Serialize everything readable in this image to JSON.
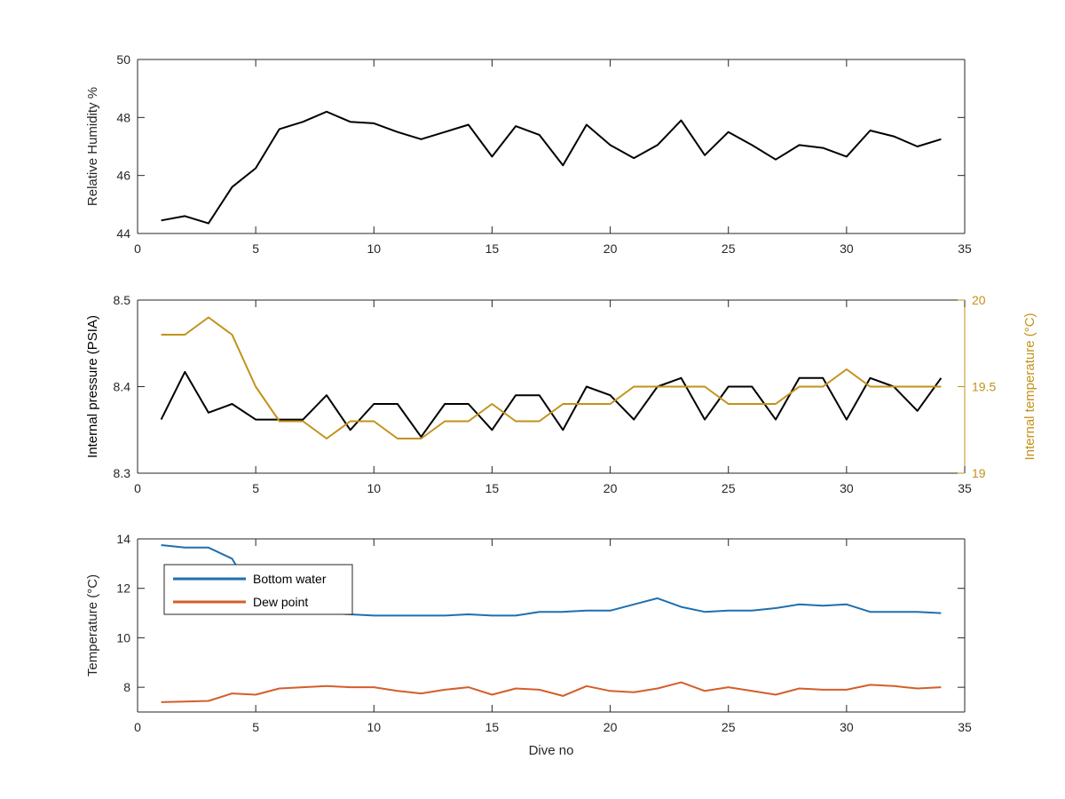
{
  "chart_data": [
    {
      "type": "line",
      "title": "",
      "xlabel": "",
      "ylabel": "Relative Humidity %",
      "xlim": [
        0,
        35
      ],
      "ylim": [
        44,
        50
      ],
      "x_ticks": [
        "0",
        "5",
        "10",
        "15",
        "20",
        "25",
        "30",
        "35"
      ],
      "y_ticks": [
        "44",
        "46",
        "48",
        "50"
      ],
      "grid": false,
      "series": [
        {
          "color": "#000000",
          "x": [
            1,
            2,
            3,
            4,
            5,
            6,
            7,
            8,
            9,
            10,
            11,
            12,
            13,
            14,
            15,
            16,
            17,
            18,
            19,
            20,
            21,
            22,
            23,
            24,
            25,
            26,
            27,
            28,
            29,
            30,
            31,
            32,
            33,
            34
          ],
          "values": [
            44.45,
            44.6,
            44.35,
            45.6,
            46.25,
            47.6,
            47.85,
            48.2,
            47.85,
            47.8,
            47.5,
            47.25,
            47.5,
            47.75,
            46.65,
            47.7,
            47.4,
            46.35,
            47.75,
            47.05,
            46.6,
            47.05,
            47.9,
            46.7,
            47.5,
            47.05,
            46.55,
            47.05,
            46.95,
            46.65,
            47.55,
            47.35,
            47.0,
            47.25
          ]
        }
      ]
    },
    {
      "type": "line",
      "title": "",
      "xlabel": "",
      "ylabel": "Internal pressure (PSIA)",
      "ylabel_right": "Internal temperature (°C)",
      "xlim": [
        0,
        35
      ],
      "ylim": [
        8.3,
        8.5
      ],
      "ylim_right": [
        19,
        20
      ],
      "x_ticks": [
        "0",
        "5",
        "10",
        "15",
        "20",
        "25",
        "30",
        "35"
      ],
      "y_ticks": [
        "8.3",
        "8.4",
        "8.5"
      ],
      "y_ticks_right": [
        "19",
        "19.5",
        "20"
      ],
      "right_axis_color": "#C2921A",
      "grid": false,
      "series": [
        {
          "axis": "left",
          "color": "#000000",
          "x": [
            1,
            2,
            3,
            4,
            5,
            6,
            7,
            8,
            9,
            10,
            11,
            12,
            13,
            14,
            15,
            16,
            17,
            18,
            19,
            20,
            21,
            22,
            23,
            24,
            25,
            26,
            27,
            28,
            29,
            30,
            31,
            32,
            33,
            34
          ],
          "values": [
            8.362,
            8.417,
            8.37,
            8.38,
            8.362,
            8.362,
            8.362,
            8.39,
            8.35,
            8.38,
            8.38,
            8.342,
            8.38,
            8.38,
            8.35,
            8.39,
            8.39,
            8.35,
            8.4,
            8.39,
            8.362,
            8.4,
            8.41,
            8.362,
            8.4,
            8.4,
            8.362,
            8.41,
            8.41,
            8.362,
            8.41,
            8.4,
            8.372,
            8.41
          ]
        },
        {
          "axis": "right",
          "color": "#C2921A",
          "x": [
            1,
            2,
            3,
            4,
            5,
            6,
            7,
            8,
            9,
            10,
            11,
            12,
            13,
            14,
            15,
            16,
            17,
            18,
            19,
            20,
            21,
            22,
            23,
            24,
            25,
            26,
            27,
            28,
            29,
            30,
            31,
            32,
            33,
            34
          ],
          "values": [
            19.8,
            19.8,
            19.9,
            19.8,
            19.5,
            19.3,
            19.3,
            19.2,
            19.3,
            19.3,
            19.2,
            19.2,
            19.3,
            19.3,
            19.4,
            19.3,
            19.3,
            19.4,
            19.4,
            19.4,
            19.5,
            19.5,
            19.5,
            19.5,
            19.4,
            19.4,
            19.4,
            19.5,
            19.5,
            19.6,
            19.5,
            19.5,
            19.5,
            19.5
          ]
        }
      ]
    },
    {
      "type": "line",
      "title": "",
      "xlabel": "Dive no",
      "ylabel": "Temperature (°C)",
      "xlim": [
        0,
        35
      ],
      "ylim": [
        7,
        14
      ],
      "x_ticks": [
        "0",
        "5",
        "10",
        "15",
        "20",
        "25",
        "30",
        "35"
      ],
      "y_ticks": [
        "8",
        "10",
        "12",
        "14"
      ],
      "grid": false,
      "legend": "top-left",
      "series": [
        {
          "name": "Bottom water",
          "color": "#1F6FAF",
          "x": [
            1,
            2,
            3,
            4,
            5,
            6,
            7,
            8,
            9,
            10,
            11,
            12,
            13,
            14,
            15,
            16,
            17,
            18,
            19,
            20,
            21,
            22,
            23,
            24,
            25,
            26,
            27,
            28,
            29,
            30,
            31,
            32,
            33,
            34
          ],
          "values": [
            13.75,
            13.65,
            13.65,
            13.2,
            11.6,
            11.1,
            11.05,
            11.0,
            10.95,
            10.9,
            10.9,
            10.9,
            10.9,
            10.95,
            10.9,
            10.9,
            11.05,
            11.05,
            11.1,
            11.1,
            11.35,
            11.6,
            11.25,
            11.05,
            11.1,
            11.1,
            11.2,
            11.35,
            11.3,
            11.35,
            11.05,
            11.05,
            11.05,
            11.0
          ]
        },
        {
          "name": "Dew point",
          "color": "#D45E2A",
          "x": [
            1,
            2,
            3,
            4,
            5,
            6,
            7,
            8,
            9,
            10,
            11,
            12,
            13,
            14,
            15,
            16,
            17,
            18,
            19,
            20,
            21,
            22,
            23,
            24,
            25,
            26,
            27,
            28,
            29,
            30,
            31,
            32,
            33,
            34
          ],
          "values": [
            7.4,
            7.42,
            7.45,
            7.75,
            7.7,
            7.95,
            8.0,
            8.05,
            8.0,
            8.0,
            7.85,
            7.75,
            7.9,
            8.0,
            7.7,
            7.95,
            7.9,
            7.65,
            8.05,
            7.85,
            7.8,
            7.95,
            8.2,
            7.85,
            8.0,
            7.85,
            7.7,
            7.95,
            7.9,
            7.9,
            8.1,
            8.05,
            7.95,
            8.0
          ]
        }
      ]
    }
  ]
}
